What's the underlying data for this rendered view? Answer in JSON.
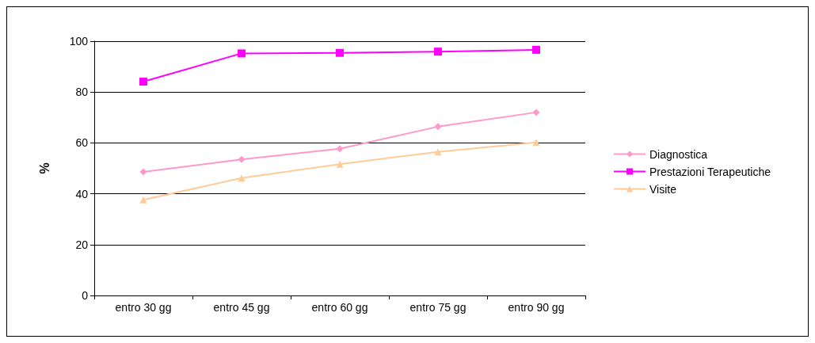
{
  "chart_data": {
    "type": "line",
    "ylabel": "%",
    "categories": [
      "entro 30 gg",
      "entro 45 gg",
      "entro 60 gg",
      "entro 75 gg",
      "entro 90 gg"
    ],
    "series": [
      {
        "name": "Diagnostica",
        "color": "#ff99cc",
        "marker": "diamond",
        "values": [
          48.6,
          53.5,
          57.7,
          66.4,
          72
        ]
      },
      {
        "name": "Prestazioni Terapeutiche",
        "color": "#ff00ff",
        "marker": "square",
        "values": [
          84.1,
          95.2,
          95.4,
          95.9,
          96.6
        ]
      },
      {
        "name": "Visite",
        "color": "#ffcc99",
        "marker": "triangle",
        "values": [
          37.6,
          46.2,
          51.6,
          56.5,
          60.2
        ]
      }
    ],
    "ylim": [
      0,
      100
    ],
    "yticks": [
      0,
      20,
      40,
      60,
      80,
      100
    ],
    "grid": "y",
    "legend": "right"
  }
}
